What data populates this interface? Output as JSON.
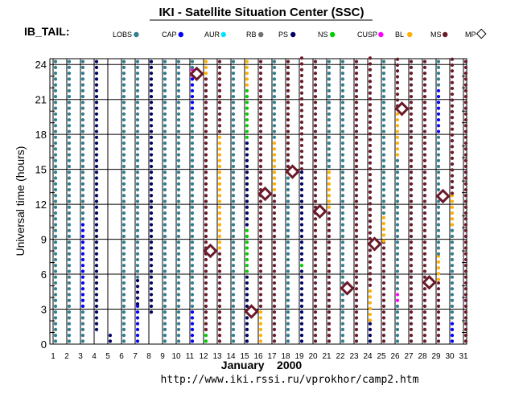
{
  "chart_data": {
    "type": "scatter",
    "title": "IKI - Satellite Situation Center (SSC)",
    "subtitle": "IB_TAIL:",
    "ylabel": "Universal time (hours)",
    "xlabel": "January    2000",
    "url": "http://www.iki.rssi.ru/vprokhor/camp2.htm",
    "xlim": [
      1,
      31
    ],
    "ylim": [
      0,
      24.5
    ],
    "x_ticks": [
      "1",
      "2",
      "3",
      "4",
      "5",
      "6",
      "7",
      "8",
      "9",
      "10",
      "11",
      "12",
      "13",
      "14",
      "15",
      "16",
      "17",
      "18",
      "19",
      "20",
      "21",
      "22",
      "23",
      "24",
      "25",
      "26",
      "27",
      "28",
      "29",
      "30",
      "31"
    ],
    "y_ticks": [
      0,
      3,
      6,
      9,
      12,
      15,
      18,
      21,
      24
    ],
    "grid": true,
    "legend": [
      {
        "key": "LOBS",
        "label": "LOBS",
        "color": "#2f7f8f"
      },
      {
        "key": "CAP",
        "label": "CAP",
        "color": "#0000ff"
      },
      {
        "key": "AUR",
        "label": "AUR",
        "color": "#00e5ff"
      },
      {
        "key": "RB",
        "label": "RB",
        "color": "#707070"
      },
      {
        "key": "PS",
        "label": "PS",
        "color": "#000066"
      },
      {
        "key": "NS",
        "label": "NS",
        "color": "#00cc00"
      },
      {
        "key": "CUSP",
        "label": "CUSP",
        "color": "#ff00ff"
      },
      {
        "key": "BL",
        "label": "BL",
        "color": "#ffb000"
      },
      {
        "key": "MS",
        "label": "MS",
        "color": "#6b1a2a"
      },
      {
        "key": "MP",
        "label": "MP",
        "color": "#ffffff"
      }
    ],
    "days": [
      {
        "day": 1,
        "segments": [
          {
            "from": 0,
            "to": 24.5,
            "region": "LOBS"
          }
        ]
      },
      {
        "day": 2,
        "segments": [
          {
            "from": 0,
            "to": 24.5,
            "region": "LOBS"
          }
        ]
      },
      {
        "day": 3,
        "segments": [
          {
            "from": 0,
            "to": 3,
            "region": "LOBS"
          },
          {
            "from": 3,
            "to": 10.5,
            "region": "CAP"
          },
          {
            "from": 10.5,
            "to": 24.5,
            "region": "LOBS"
          }
        ]
      },
      {
        "day": 4,
        "segments": [
          {
            "from": 1,
            "to": 24.5,
            "region": "PS"
          }
        ]
      },
      {
        "day": 5,
        "segments": [
          {
            "from": 0,
            "to": 1,
            "region": "PS"
          }
        ]
      },
      {
        "day": 6,
        "segments": [
          {
            "from": 0,
            "to": 24.5,
            "region": "LOBS"
          }
        ]
      },
      {
        "day": 7,
        "segments": [
          {
            "from": 0,
            "to": 3.2,
            "region": "CAP"
          },
          {
            "from": 3.2,
            "to": 5.5,
            "region": "PS"
          },
          {
            "from": 5.5,
            "to": 24.5,
            "region": "LOBS"
          }
        ]
      },
      {
        "day": 8,
        "segments": [
          {
            "from": 2.5,
            "to": 24.5,
            "region": "PS"
          }
        ]
      },
      {
        "day": 9,
        "segments": [
          {
            "from": 0,
            "to": 24.5,
            "region": "LOBS"
          }
        ]
      },
      {
        "day": 10,
        "segments": [
          {
            "from": 0,
            "to": 24.5,
            "region": "LOBS"
          }
        ]
      },
      {
        "day": 11,
        "segments": [
          {
            "from": 0,
            "to": 3,
            "region": "CAP"
          },
          {
            "from": 3,
            "to": 20,
            "region": "LOBS"
          },
          {
            "from": 20,
            "to": 22.8,
            "region": "CAP"
          },
          {
            "from": 22.8,
            "to": 23.5,
            "region": "CUSP"
          },
          {
            "from": 23.5,
            "to": 24.5,
            "region": "LOBS"
          }
        ]
      },
      {
        "day": 12,
        "segments": [
          {
            "from": 0,
            "to": 1,
            "region": "NS"
          },
          {
            "from": 1,
            "to": 23,
            "region": "MS"
          },
          {
            "from": 23,
            "to": 24.5,
            "region": "BL"
          }
        ]
      },
      {
        "day": 13,
        "segments": [
          {
            "from": 0,
            "to": 8,
            "region": "MS"
          },
          {
            "from": 8,
            "to": 18,
            "region": "BL"
          },
          {
            "from": 18,
            "to": 24.5,
            "region": "MS"
          }
        ]
      },
      {
        "day": 14,
        "segments": [
          {
            "from": 0,
            "to": 24.5,
            "region": "LOBS"
          }
        ]
      },
      {
        "day": 15,
        "segments": [
          {
            "from": 0,
            "to": 6,
            "region": "PS"
          },
          {
            "from": 6,
            "to": 10,
            "region": "NS"
          },
          {
            "from": 10,
            "to": 17.5,
            "region": "PS"
          },
          {
            "from": 17.5,
            "to": 22,
            "region": "NS"
          },
          {
            "from": 22,
            "to": 24.5,
            "region": "BL"
          }
        ]
      },
      {
        "day": 16,
        "segments": [
          {
            "from": 0,
            "to": 3,
            "region": "BL"
          },
          {
            "from": 3,
            "to": 24.5,
            "region": "MS"
          }
        ]
      },
      {
        "day": 17,
        "segments": [
          {
            "from": 0,
            "to": 13,
            "region": "MS"
          },
          {
            "from": 13,
            "to": 17.5,
            "region": "BL"
          },
          {
            "from": 17.5,
            "to": 24.5,
            "region": "LOBS"
          }
        ]
      },
      {
        "day": 18,
        "segments": [
          {
            "from": 0,
            "to": 15,
            "region": "LOBS"
          },
          {
            "from": 15,
            "to": 24.5,
            "region": "MS"
          }
        ]
      },
      {
        "day": 19,
        "segments": [
          {
            "from": 0,
            "to": 6.5,
            "region": "PS"
          },
          {
            "from": 6.5,
            "to": 7,
            "region": "NS"
          },
          {
            "from": 7,
            "to": 14.8,
            "region": "PS"
          },
          {
            "from": 14.8,
            "to": 24.5,
            "region": "MS"
          }
        ]
      },
      {
        "day": 20,
        "segments": [
          {
            "from": 0,
            "to": 24.5,
            "region": "MS"
          }
        ]
      },
      {
        "day": 21,
        "segments": [
          {
            "from": 0,
            "to": 11.5,
            "region": "MS"
          },
          {
            "from": 11.5,
            "to": 15,
            "region": "BL"
          },
          {
            "from": 15,
            "to": 24.5,
            "region": "LOBS"
          }
        ]
      },
      {
        "day": 22,
        "segments": [
          {
            "from": 0,
            "to": 24.5,
            "region": "LOBS"
          }
        ]
      },
      {
        "day": 23,
        "segments": [
          {
            "from": 0,
            "to": 24.5,
            "region": "MS"
          }
        ]
      },
      {
        "day": 24,
        "segments": [
          {
            "from": 0,
            "to": 1.8,
            "region": "PS"
          },
          {
            "from": 1.8,
            "to": 4.8,
            "region": "BL"
          },
          {
            "from": 4.8,
            "to": 24.5,
            "region": "MS"
          }
        ]
      },
      {
        "day": 25,
        "segments": [
          {
            "from": 0,
            "to": 8.6,
            "region": "MS"
          },
          {
            "from": 8.6,
            "to": 11,
            "region": "BL"
          },
          {
            "from": 11,
            "to": 24.5,
            "region": "LOBS"
          }
        ]
      },
      {
        "day": 26,
        "segments": [
          {
            "from": 0,
            "to": 3.5,
            "region": "LOBS"
          },
          {
            "from": 3.5,
            "to": 4.5,
            "region": "CUSP"
          },
          {
            "from": 4.5,
            "to": 16,
            "region": "LOBS"
          },
          {
            "from": 16,
            "to": 20.2,
            "region": "BL"
          },
          {
            "from": 20.2,
            "to": 24.5,
            "region": "MS"
          }
        ]
      },
      {
        "day": 27,
        "segments": [
          {
            "from": 0,
            "to": 24.5,
            "region": "MS"
          }
        ]
      },
      {
        "day": 28,
        "segments": [
          {
            "from": 0,
            "to": 24.5,
            "region": "MS"
          }
        ]
      },
      {
        "day": 29,
        "segments": [
          {
            "from": 0,
            "to": 5.3,
            "region": "MS"
          },
          {
            "from": 5.3,
            "to": 7.5,
            "region": "BL"
          },
          {
            "from": 7.5,
            "to": 18,
            "region": "LOBS"
          },
          {
            "from": 18,
            "to": 22,
            "region": "CAP"
          },
          {
            "from": 22,
            "to": 24.5,
            "region": "LOBS"
          }
        ]
      },
      {
        "day": 30,
        "segments": [
          {
            "from": 0,
            "to": 2,
            "region": "CAP"
          },
          {
            "from": 2,
            "to": 10,
            "region": "LOBS"
          },
          {
            "from": 10,
            "to": 12.7,
            "region": "BL"
          },
          {
            "from": 12.7,
            "to": 24.5,
            "region": "MS"
          }
        ]
      },
      {
        "day": 31,
        "segments": [
          {
            "from": 0,
            "to": 24.5,
            "region": "MS"
          }
        ]
      }
    ],
    "magnetopause_crossings": [
      {
        "day": 11.5,
        "hour": 23.2
      },
      {
        "day": 12.5,
        "hour": 8.0
      },
      {
        "day": 15.5,
        "hour": 2.8
      },
      {
        "day": 16.5,
        "hour": 12.9
      },
      {
        "day": 18.5,
        "hour": 14.8
      },
      {
        "day": 20.5,
        "hour": 11.4
      },
      {
        "day": 22.5,
        "hour": 4.8
      },
      {
        "day": 24.5,
        "hour": 8.6
      },
      {
        "day": 26.5,
        "hour": 20.2
      },
      {
        "day": 28.5,
        "hour": 5.3
      },
      {
        "day": 29.5,
        "hour": 12.7
      }
    ]
  }
}
